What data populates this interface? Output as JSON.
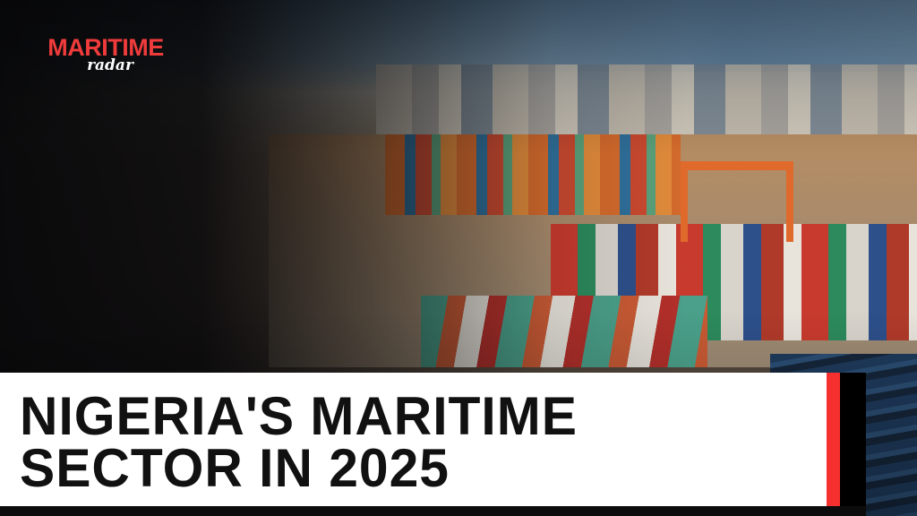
{
  "logo": {
    "main": "MARITIME",
    "sub": "radar"
  },
  "headline": {
    "line1": "NIGERIA'S MARITIME",
    "line2": "SECTOR IN 2025"
  },
  "colors": {
    "accent_red": "#f5302e",
    "logo_red": "#ef3b3b",
    "banner_bg": "#ffffff",
    "text": "#111111"
  }
}
